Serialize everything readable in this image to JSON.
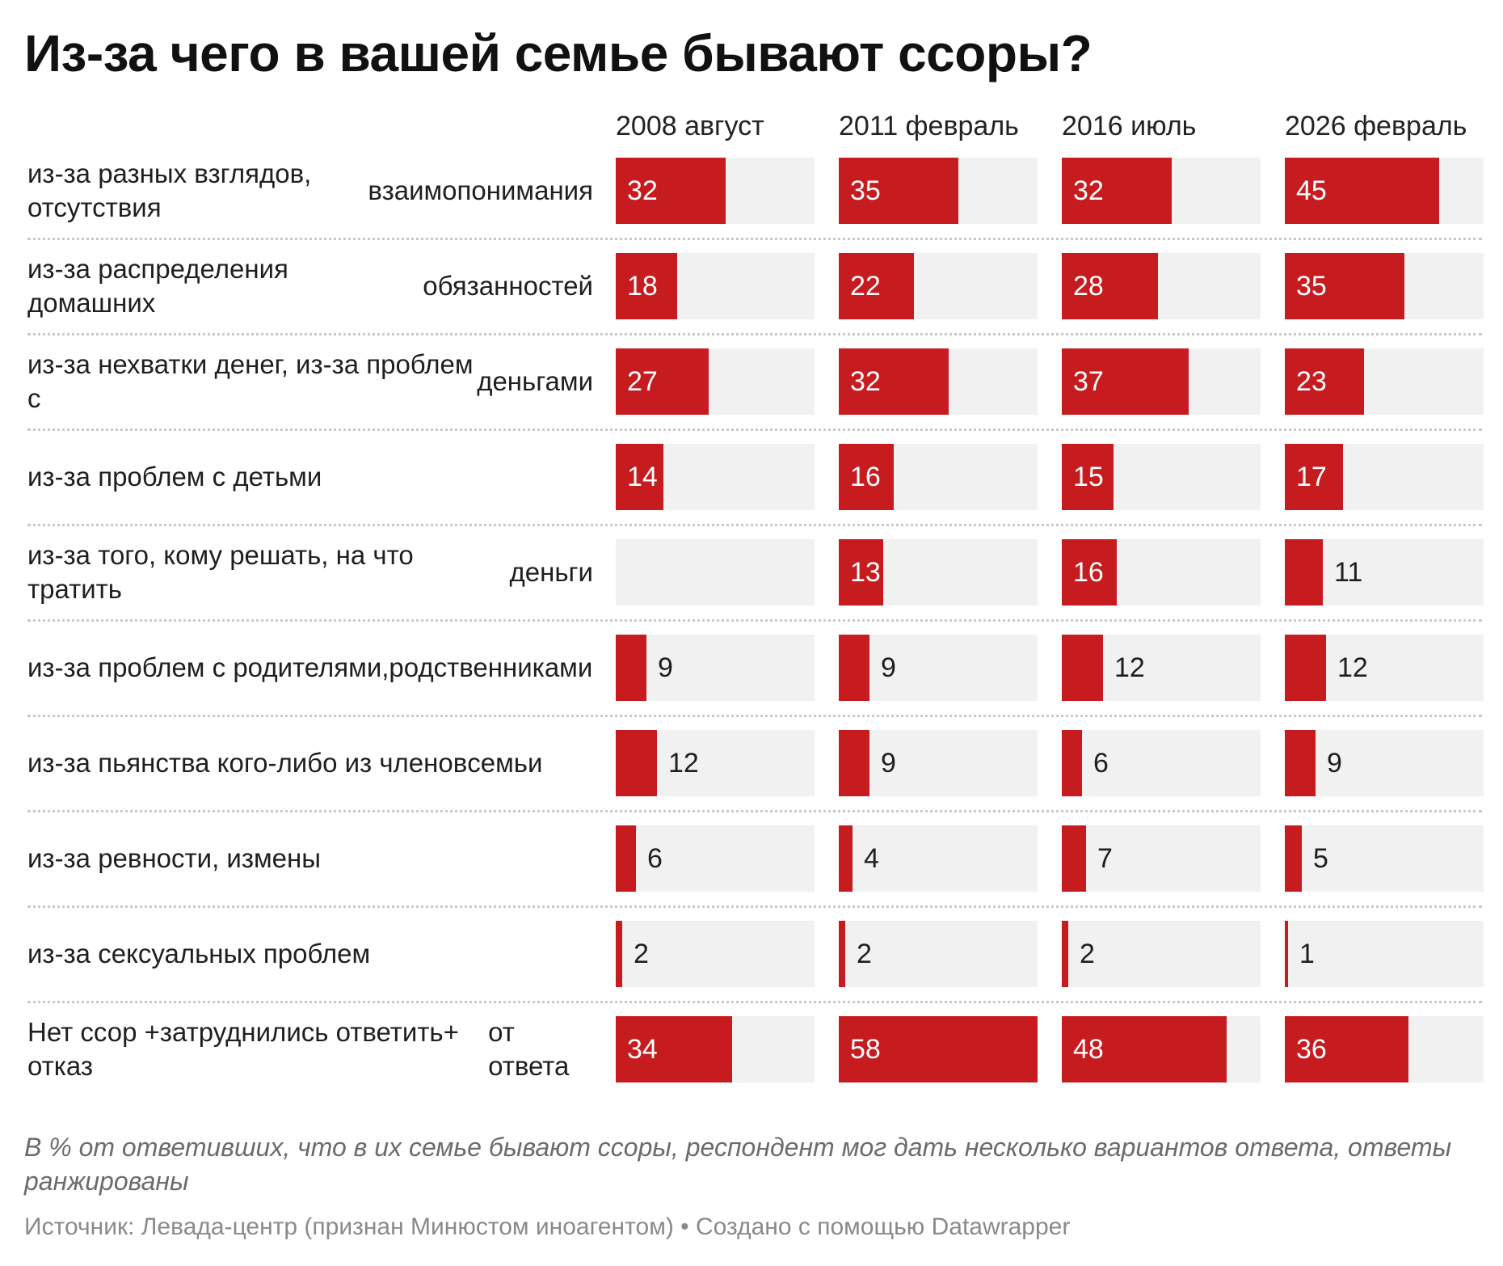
{
  "title": "Из-за чего в вашей семье бывают ссоры?",
  "note": "В % от ответивших, что в их семье бывают ссоры, респондент мог дать несколько вариантов ответа, ответы ранжированы",
  "source": "Источник: Левада-центр (признан Минюстом иноагентом) • Создано с помощью Datawrapper",
  "colors": {
    "bar": "#c61b1f",
    "track": "#f1f1f1",
    "label_inside": "#ffffff",
    "label_outside": "#1f1f1f"
  },
  "chart_data": {
    "type": "bar",
    "orientation": "horizontal",
    "layout": "small multiples (one column per survey wave)",
    "xlim": [
      0,
      58
    ],
    "grid": false,
    "legend": "none",
    "series": [
      {
        "name": "2008 август",
        "values": [
          32,
          18,
          27,
          14,
          null,
          9,
          12,
          6,
          2,
          34
        ]
      },
      {
        "name": "2011 февраль",
        "values": [
          35,
          22,
          32,
          16,
          13,
          9,
          9,
          4,
          2,
          58
        ]
      },
      {
        "name": "2016 июль",
        "values": [
          32,
          28,
          37,
          15,
          16,
          12,
          6,
          7,
          2,
          48
        ]
      },
      {
        "name": "2026 февраль",
        "values": [
          45,
          35,
          23,
          17,
          11,
          12,
          9,
          5,
          1,
          36
        ]
      }
    ],
    "categories": [
      "из-за разных взглядов, отсутствия взаимопонимания",
      "из-за распределения домашних обязанностей",
      "из-за нехватки денег, из-за проблем с деньгами",
      "из-за проблем с детьми",
      "из-за того, кому решать, на что тратить деньги",
      "из-за проблем с родителями, родственниками",
      "из-за пьянства кого-либо из членов семьи",
      "из-за ревности, измены",
      "из-за сексуальных проблем",
      "Нет ссор +затруднились ответить+ отказ от ответа"
    ]
  },
  "rows": [
    {
      "label": [
        "из-за разных взглядов, отсутствия",
        "взаимопонимания"
      ]
    },
    {
      "label": [
        "из-за распределения домашних",
        "обязанностей"
      ]
    },
    {
      "label": [
        "из-за нехватки денег, из-за проблем с",
        "деньгами"
      ]
    },
    {
      "label": [
        "из-за проблем с детьми"
      ]
    },
    {
      "label": [
        "из-за того, кому решать, на что тратить",
        "деньги"
      ]
    },
    {
      "label": [
        "из-за проблем с родителями,",
        "родственниками"
      ]
    },
    {
      "label": [
        "из-за пьянства кого-либо из членов",
        "семьи"
      ]
    },
    {
      "label": [
        "из-за ревности, измены"
      ]
    },
    {
      "label": [
        "из-за сексуальных проблем"
      ]
    },
    {
      "label": [
        "Нет ссор +затруднились ответить+ отказ",
        "от ответа"
      ]
    }
  ]
}
